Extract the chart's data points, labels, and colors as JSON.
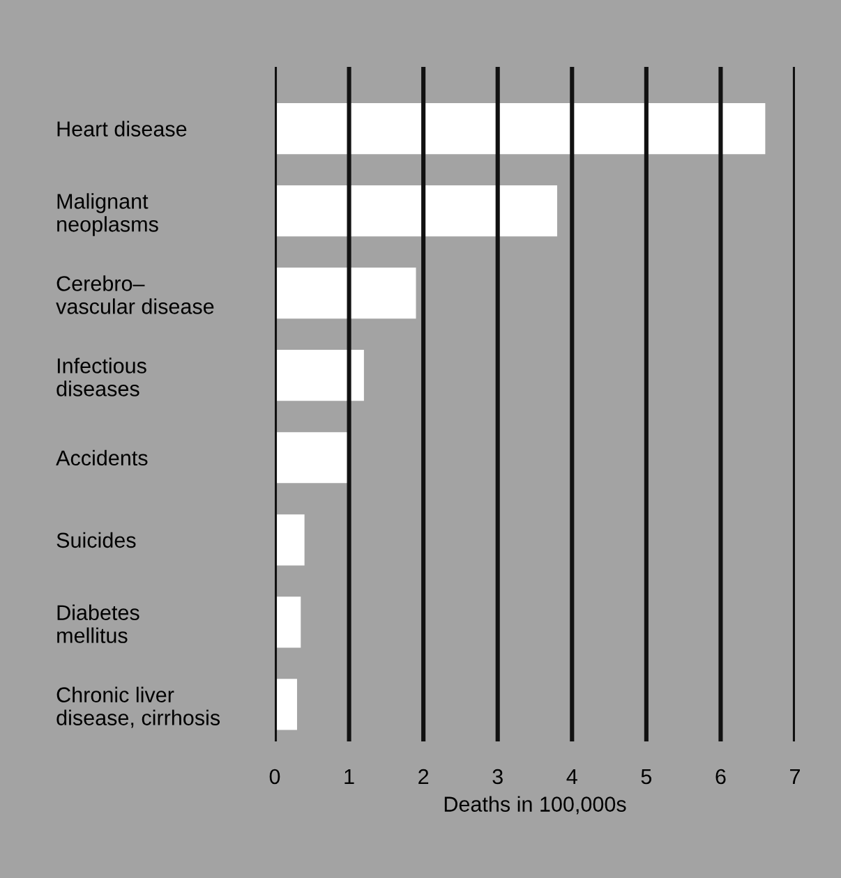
{
  "chart_data": {
    "type": "bar",
    "orientation": "horizontal",
    "xlabel": "Deaths in 100,000s",
    "categories": [
      "Heart disease",
      "Malignant\nneoplasms",
      "Cerebro–\nvascular disease",
      "Infectious\ndiseases",
      "Accidents",
      "Suicides",
      "Diabetes\nmellitus",
      "Chronic liver\ndisease, cirrhosis"
    ],
    "values": [
      6.6,
      3.8,
      1.9,
      1.2,
      1.0,
      0.4,
      0.35,
      0.3
    ],
    "color": "#ffffff",
    "xlim": [
      0,
      7
    ],
    "xticks": [
      0,
      1,
      2,
      3,
      4,
      5,
      6,
      7
    ],
    "grid": "x"
  }
}
